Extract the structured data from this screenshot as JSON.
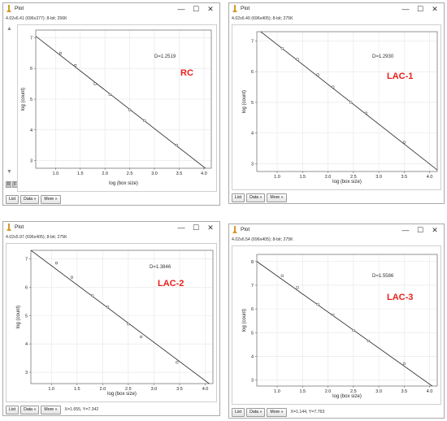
{
  "colors": {
    "label_red": "#e8201a",
    "line": "#222222",
    "grid": "#e6e6e6",
    "marker": "#444444"
  },
  "windows": [
    {
      "title": "Plot",
      "info": "4.02x6.41  (696x377); 8-bit; 256K",
      "d_value": "D=1.2519",
      "label": "RC",
      "buttons": {
        "list": "List",
        "data": "Data »",
        "more": "More »"
      },
      "coords": "",
      "xlabel": "log (box size)",
      "ylabel": "log (count)",
      "side_controls": {
        "r": "R",
        "f": "F"
      },
      "chart_data": {
        "type": "scatter",
        "xlim": [
          0.6,
          4.15
        ],
        "ylim": [
          2.75,
          7.25
        ],
        "xticks": [
          "1.0",
          "1.5",
          "2.0",
          "2.5",
          "3.0",
          "3.5",
          "4.0"
        ],
        "yticks": [
          "3",
          "4",
          "5",
          "6",
          "7"
        ],
        "points": [
          [
            1.1,
            6.5
          ],
          [
            1.4,
            6.1
          ],
          [
            1.8,
            5.5
          ],
          [
            2.1,
            5.15
          ],
          [
            2.5,
            4.65
          ],
          [
            2.8,
            4.3
          ],
          [
            3.45,
            3.5
          ]
        ],
        "fit_line": [
          [
            0.6,
            7.05
          ],
          [
            4.15,
            2.6
          ]
        ]
      }
    },
    {
      "title": "Plot",
      "info": "4.02x6.40  (696x405); 8-bit; 275K",
      "d_value": "D=1.2930",
      "label": "LAC-1",
      "buttons": {
        "list": "List",
        "data": "Data »",
        "more": "More »"
      },
      "coords": "",
      "xlabel": "log (box size)",
      "ylabel": "log (count)",
      "chart_data": {
        "type": "scatter",
        "xlim": [
          0.6,
          4.15
        ],
        "ylim": [
          2.75,
          7.3
        ],
        "xticks": [
          "1.0",
          "1.5",
          "2.0",
          "2.5",
          "3.0",
          "3.5",
          "4.0"
        ],
        "yticks": [
          "3",
          "4",
          "5",
          "6",
          "7"
        ],
        "points": [
          [
            1.1,
            6.75
          ],
          [
            1.4,
            6.4
          ],
          [
            1.8,
            5.9
          ],
          [
            2.1,
            5.5
          ],
          [
            2.45,
            5.0
          ],
          [
            2.75,
            4.65
          ],
          [
            3.5,
            3.7
          ]
        ],
        "fit_line": [
          [
            0.6,
            7.4
          ],
          [
            4.15,
            2.8
          ]
        ]
      }
    },
    {
      "title": "Plot",
      "info": "4.02x5.97  (696x405); 8-bit; 275K",
      "d_value": "D=1.3846",
      "label": "LAC-2",
      "buttons": {
        "list": "List",
        "data": "Data »",
        "more": "More »"
      },
      "coords": "X=1.655, Y=7.342",
      "xlabel": "log (box size)",
      "ylabel": "log (count)",
      "chart_data": {
        "type": "scatter",
        "xlim": [
          0.6,
          4.15
        ],
        "ylim": [
          2.6,
          7.3
        ],
        "xticks": [
          "1.0",
          "1.5",
          "2.0",
          "2.5",
          "3.0",
          "3.5",
          "4.0"
        ],
        "yticks": [
          "3",
          "4",
          "5",
          "6",
          "7"
        ],
        "points": [
          [
            1.1,
            6.85
          ],
          [
            1.4,
            6.35
          ],
          [
            1.8,
            5.7
          ],
          [
            2.1,
            5.3
          ],
          [
            2.5,
            4.7
          ],
          [
            2.75,
            4.25
          ],
          [
            3.45,
            3.35
          ]
        ],
        "fit_line": [
          [
            0.6,
            7.3
          ],
          [
            4.15,
            2.5
          ]
        ]
      }
    },
    {
      "title": "Plot",
      "info": "4.02x6.54  (696x405); 8-bit; 275K",
      "d_value": "D=1.5586",
      "label": "LAC-3",
      "buttons": {
        "list": "List",
        "data": "Data »",
        "more": "More »"
      },
      "coords": "X=1.144, Y=7.763",
      "xlabel": "log (box size)",
      "ylabel": "log (count)",
      "chart_data": {
        "type": "scatter",
        "xlim": [
          0.6,
          4.15
        ],
        "ylim": [
          2.75,
          8.3
        ],
        "xticks": [
          "1.0",
          "1.5",
          "2.0",
          "2.5",
          "3.0",
          "3.5",
          "4.0"
        ],
        "yticks": [
          "3",
          "4",
          "5",
          "6",
          "7",
          "8"
        ],
        "points": [
          [
            1.1,
            7.4
          ],
          [
            1.4,
            6.9
          ],
          [
            1.8,
            6.2
          ],
          [
            2.1,
            5.75
          ],
          [
            2.5,
            5.1
          ],
          [
            2.8,
            4.65
          ],
          [
            3.5,
            3.7
          ]
        ],
        "fit_line": [
          [
            0.6,
            8.0
          ],
          [
            4.15,
            2.6
          ]
        ]
      }
    }
  ]
}
